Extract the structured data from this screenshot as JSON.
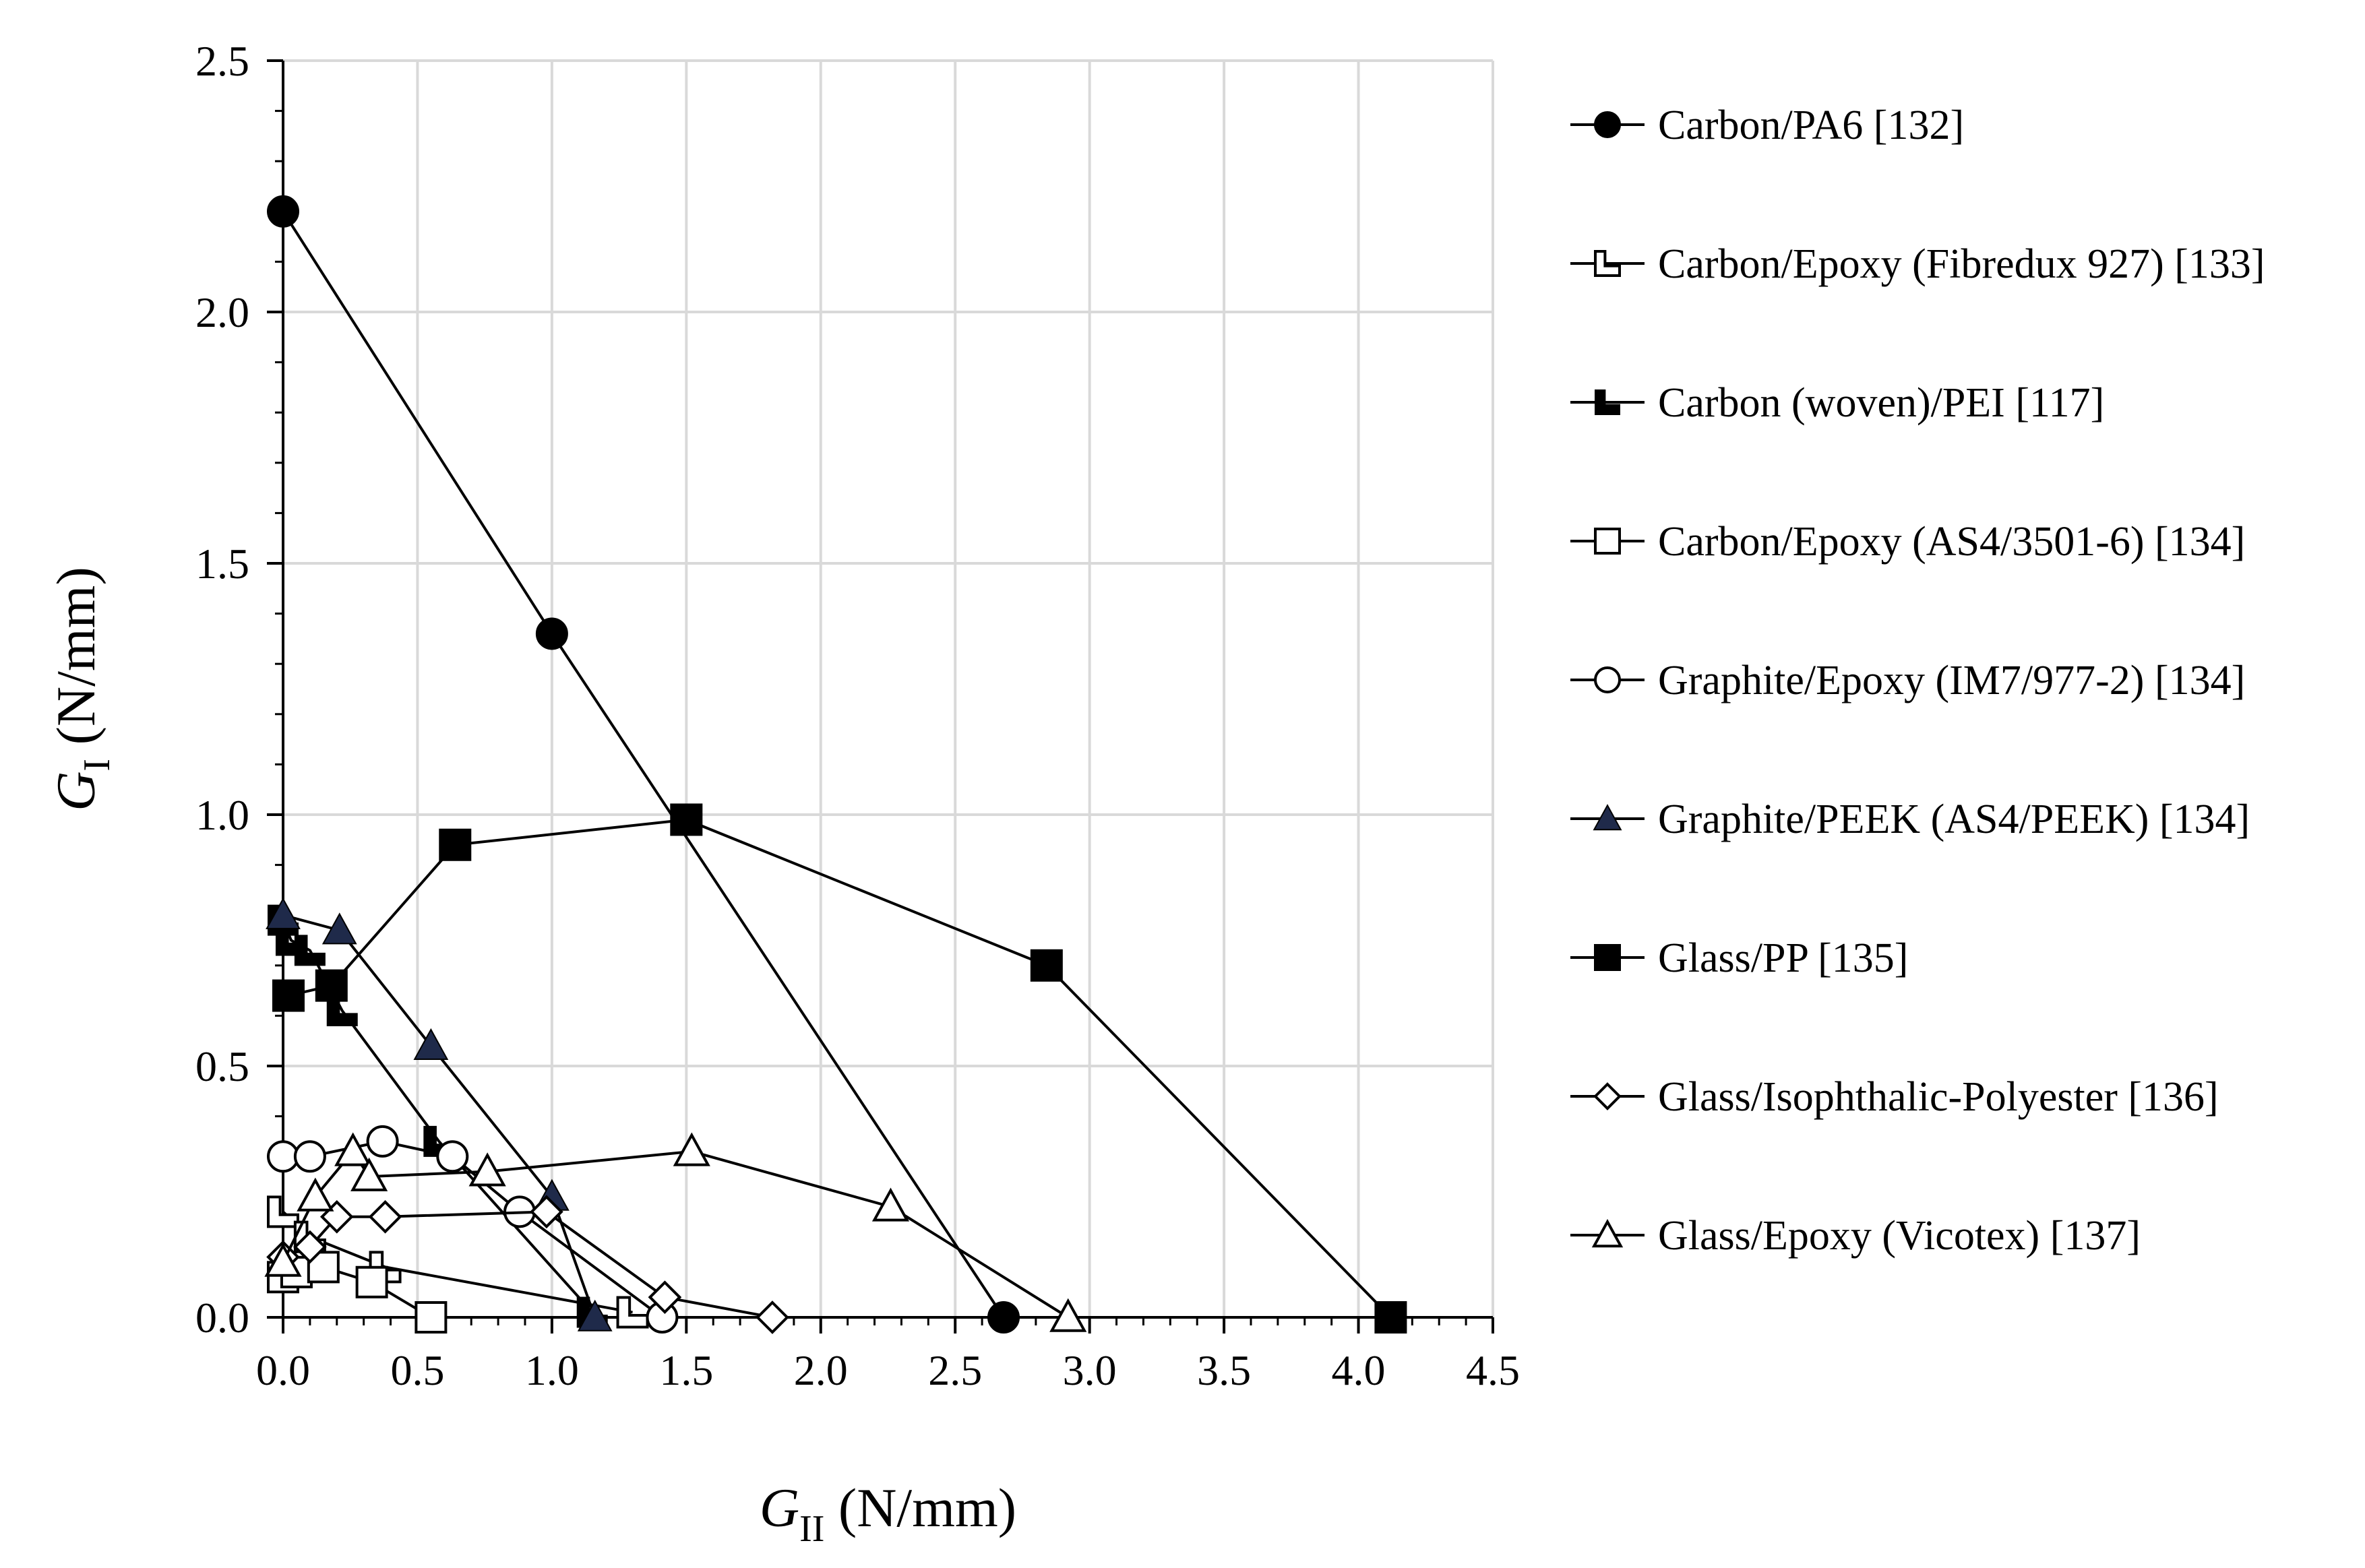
{
  "chart_data": {
    "type": "scatter",
    "xlabel": {
      "main": "G",
      "sub": "II",
      "unit": "(N/mm)"
    },
    "ylabel": {
      "main": "G",
      "sub": "I",
      "unit": "(N/mm)"
    },
    "xlim": [
      0,
      4.5
    ],
    "ylim": [
      0,
      2.5
    ],
    "x_ticks": [
      "0.0",
      "0.5",
      "1.0",
      "1.5",
      "2.0",
      "2.5",
      "3.0",
      "3.5",
      "4.0",
      "4.5"
    ],
    "y_ticks": [
      "0.0",
      "0.5",
      "1.0",
      "1.5",
      "2.0",
      "2.5"
    ],
    "grid": true,
    "legend_position": "right",
    "series": [
      {
        "name": "Carbon/PA6 [132]",
        "marker": "circle-filled",
        "x": [
          0,
          1.0,
          2.68
        ],
        "y": [
          2.2,
          1.36,
          0.0
        ]
      },
      {
        "name": "Carbon/Epoxy (Fibredux 927) [133]",
        "marker": "l-open",
        "x": [
          0,
          0.1,
          0.38,
          1.3
        ],
        "y": [
          0.21,
          0.16,
          0.1,
          0.01
        ]
      },
      {
        "name": "Carbon (woven)/PEI [117]",
        "marker": "l-filled",
        "x": [
          0,
          0.03,
          0.1,
          0.22,
          0.58,
          1.15
        ],
        "y": [
          0.79,
          0.75,
          0.73,
          0.61,
          0.35,
          0.01
        ]
      },
      {
        "name": "Carbon/Epoxy (AS4/3501-6) [134]",
        "marker": "square-open",
        "x": [
          0,
          0.05,
          0.15,
          0.33,
          0.55
        ],
        "y": [
          0.08,
          0.09,
          0.1,
          0.07,
          0.0
        ]
      },
      {
        "name": "Graphite/Epoxy (IM7/977-2) [134]",
        "marker": "circle-open",
        "x": [
          0,
          0.1,
          0.37,
          0.63,
          0.88,
          1.41
        ],
        "y": [
          0.32,
          0.32,
          0.35,
          0.32,
          0.21,
          0.0
        ]
      },
      {
        "name": "Graphite/PEEK (AS4/PEEK) [134]",
        "marker": "triangle-filled",
        "x": [
          0,
          0.21,
          0.55,
          1.0,
          1.16
        ],
        "y": [
          0.8,
          0.77,
          0.54,
          0.24,
          0.0
        ]
      },
      {
        "name": "Glass/PP [135]",
        "marker": "square-filled",
        "x": [
          0.02,
          0.18,
          0.64,
          1.5,
          2.84,
          4.12
        ],
        "y": [
          0.64,
          0.66,
          0.94,
          0.99,
          0.7,
          0.0
        ]
      },
      {
        "name": "Glass/Isophthalic-Polyester [136]",
        "marker": "diamond-open",
        "x": [
          0,
          0.1,
          0.2,
          0.38,
          0.98,
          1.42,
          1.82
        ],
        "y": [
          0.12,
          0.14,
          0.2,
          0.2,
          0.21,
          0.04,
          0.0
        ]
      },
      {
        "name": "Glass/Epoxy (Vicotex) [137]",
        "marker": "triangle-open",
        "x": [
          0,
          0.12,
          0.26,
          0.32,
          0.76,
          1.52,
          2.26,
          2.92
        ],
        "y": [
          0.11,
          0.24,
          0.33,
          0.28,
          0.29,
          0.33,
          0.22,
          0.0
        ]
      }
    ]
  }
}
